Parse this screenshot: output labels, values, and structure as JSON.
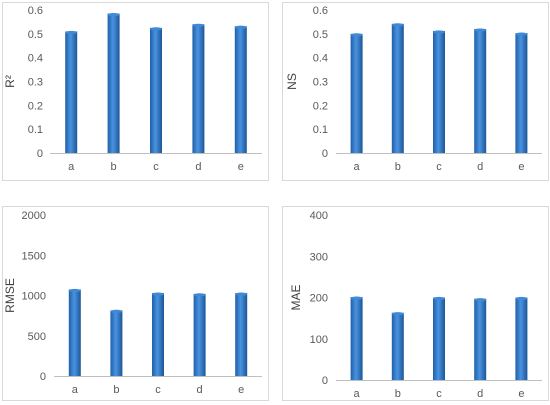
{
  "chart_data": [
    {
      "type": "bar",
      "categories": [
        "a",
        "b",
        "c",
        "d",
        "e"
      ],
      "values": [
        0.51,
        0.585,
        0.525,
        0.54,
        0.532
      ],
      "title": "",
      "xlabel": "",
      "ylabel": "R²",
      "ylim": [
        0,
        0.6
      ],
      "yticks": [
        "0",
        "0.1",
        "0.2",
        "0.3",
        "0.4",
        "0.5",
        "0.6"
      ],
      "grid": false,
      "bar_color": "#2E75C8"
    },
    {
      "type": "bar",
      "categories": [
        "a",
        "b",
        "c",
        "d",
        "e"
      ],
      "values": [
        0.5,
        0.542,
        0.512,
        0.52,
        0.503
      ],
      "title": "",
      "xlabel": "",
      "ylabel": "NS",
      "ylim": [
        0,
        0.6
      ],
      "yticks": [
        "0",
        "0.1",
        "0.2",
        "0.3",
        "0.4",
        "0.5",
        "0.6"
      ],
      "grid": false,
      "bar_color": "#2E75C8"
    },
    {
      "type": "bar",
      "categories": [
        "a",
        "b",
        "c",
        "d",
        "e"
      ],
      "values": [
        1075,
        815,
        1030,
        1020,
        1030
      ],
      "title": "",
      "xlabel": "",
      "ylabel": "RMSE",
      "ylim": [
        0,
        2000
      ],
      "yticks": [
        "0",
        "500",
        "1000",
        "1500",
        "2000"
      ],
      "grid": false,
      "bar_color": "#2E75C8"
    },
    {
      "type": "bar",
      "categories": [
        "a",
        "b",
        "c",
        "d",
        "e"
      ],
      "values": [
        201,
        163,
        200,
        197,
        200
      ],
      "title": "",
      "xlabel": "",
      "ylabel": "MAE",
      "ylim": [
        0,
        400
      ],
      "yticks": [
        "0",
        "100",
        "200",
        "300",
        "400"
      ],
      "grid": false,
      "bar_color": "#2E75C8"
    }
  ]
}
